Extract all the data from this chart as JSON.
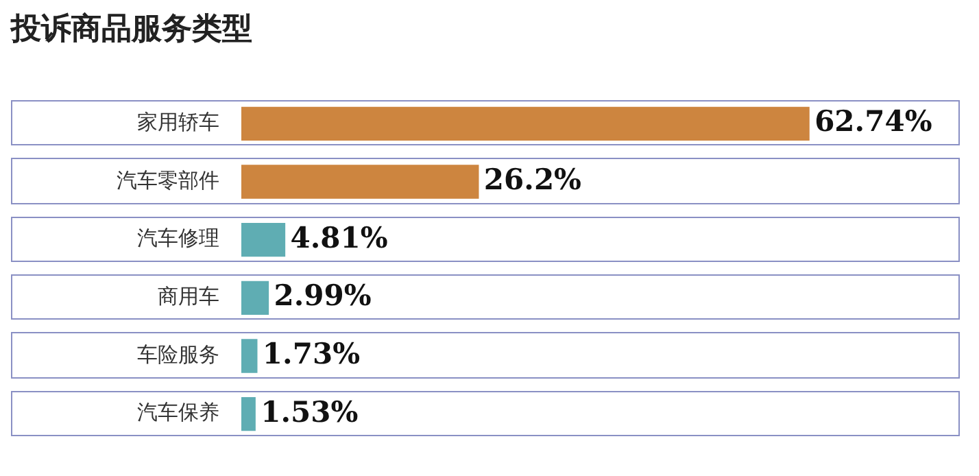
{
  "chart_data": {
    "type": "bar",
    "orientation": "horizontal",
    "title": "投诉商品服务类型",
    "categories": [
      "家用轿车",
      "汽车零部件",
      "汽车修理",
      "商用车",
      "车险服务",
      "汽车保养"
    ],
    "values": [
      62.74,
      26.2,
      4.81,
      2.99,
      1.73,
      1.53
    ],
    "colors": [
      "#cd853f",
      "#cd853f",
      "#5fadb3",
      "#5fadb3",
      "#5fadb3",
      "#5fadb3"
    ],
    "value_labels": [
      "62.74%",
      "26.2%",
      "4.81%",
      "2.99%",
      "1.73%",
      "1.53%"
    ],
    "legend": false
  }
}
